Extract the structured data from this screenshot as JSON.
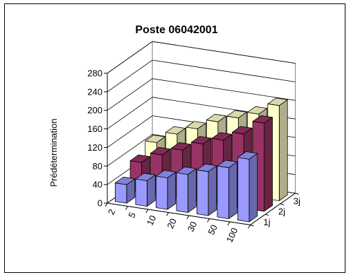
{
  "chart_data": {
    "type": "bar",
    "subtype": "3d-column",
    "title": "Poste 06042001",
    "xlabel": "",
    "ylabel": "Prédétermination",
    "categories": [
      "2",
      "5",
      "10",
      "20",
      "30",
      "50",
      "100"
    ],
    "series": [
      {
        "name": "1j",
        "values": [
          40,
          55,
          68,
          82,
          95,
          110,
          135
        ],
        "color": "#9999ff"
      },
      {
        "name": "2j",
        "values": [
          65,
          88,
          105,
          125,
          140,
          160,
          190
        ],
        "color": "#993366"
      },
      {
        "name": "3j",
        "values": [
          85,
          110,
          128,
          150,
          165,
          180,
          205
        ],
        "color": "#ffffcc"
      }
    ],
    "ylim": [
      0,
      280
    ],
    "yticks": [
      "0",
      "40",
      "80",
      "120",
      "160",
      "200",
      "240",
      "280"
    ],
    "grid": true,
    "legend": "none"
  }
}
